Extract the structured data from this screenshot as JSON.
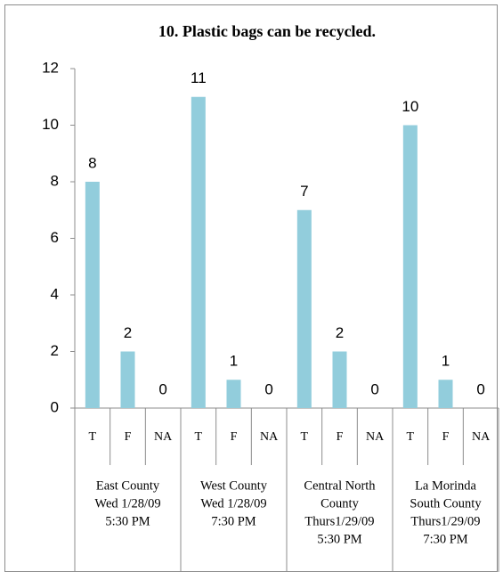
{
  "chart_data": {
    "type": "bar",
    "title": "10. Plastic bags can be recycled.",
    "categories": [
      "T",
      "F",
      "NA",
      "T",
      "F",
      "NA",
      "T",
      "F",
      "NA",
      "T",
      "F",
      "NA"
    ],
    "groups": [
      [
        "East County",
        "Wed 1/28/09",
        "5:30 PM"
      ],
      [
        "West County",
        "Wed 1/28/09",
        "7:30 PM"
      ],
      [
        "Central North",
        "County",
        "Thurs1/29/09",
        "5:30 PM"
      ],
      [
        "La Morinda",
        "South County",
        "Thurs1/29/09",
        "7:30 PM"
      ]
    ],
    "values": [
      8,
      2,
      0,
      11,
      1,
      0,
      7,
      2,
      0,
      10,
      1,
      0
    ],
    "color": "#92cddc",
    "ylim": [
      0,
      12
    ],
    "yticks": [
      0,
      2,
      4,
      6,
      8,
      10,
      12
    ]
  }
}
